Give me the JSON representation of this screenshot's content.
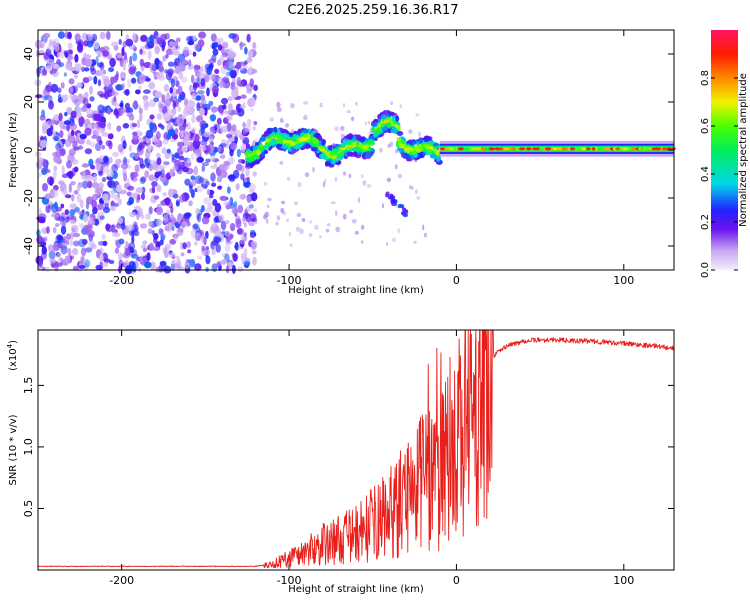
{
  "title": "C2E6.2025.259.16.36.R17",
  "chart_data": [
    {
      "type": "heatmap",
      "xlabel": "Height of straight line (km)",
      "ylabel": "Frequency (Hz)",
      "xlim": [
        -250,
        130
      ],
      "ylim": [
        -50,
        50
      ],
      "xticks": [
        -200,
        -100,
        0,
        100
      ],
      "yticks": [
        -40,
        -20,
        0,
        20,
        40
      ],
      "colorbar": {
        "label": "Normalized spectral amplitude",
        "ticks": [
          0.0,
          0.2,
          0.4,
          0.6,
          0.8
        ],
        "range": [
          0,
          1
        ]
      },
      "regions": [
        {
          "name": "noise",
          "x": [
            -250,
            -120
          ],
          "y": [
            -50,
            48
          ],
          "amplitude": [
            0.05,
            0.3
          ]
        },
        {
          "name": "transition",
          "x": [
            -125,
            -10
          ],
          "y_center": 2,
          "y_spread": 4,
          "amplitude": [
            0.3,
            0.7
          ]
        },
        {
          "name": "tail",
          "x": [
            -42,
            -28
          ],
          "y": [
            -18,
            -28
          ],
          "amplitude": [
            0.15,
            0.3
          ]
        },
        {
          "name": "carrier",
          "x": [
            -10,
            130
          ],
          "y_center": 0.5,
          "y_spread": 1.5,
          "amplitude": [
            0.5,
            1.0
          ]
        }
      ]
    },
    {
      "type": "line",
      "xlabel": "Height of straight line (km)",
      "ylabel": "SNR (10 * v/v)",
      "scale_label": "(x10",
      "scale_exp": "4",
      "scale_close": ")",
      "xlim": [
        -250,
        130
      ],
      "ylim": [
        0,
        1.95
      ],
      "yunit_multiplier": 10000,
      "xticks": [
        -200,
        -100,
        0,
        100
      ],
      "yticks": [
        0.5,
        1.0,
        1.5
      ],
      "ytick_labels": [
        "0.5",
        "1.0",
        "1.5"
      ],
      "color": "#e8201c",
      "series": [
        {
          "name": "SNR",
          "x": [
            -250,
            -200,
            -150,
            -120,
            -110,
            -100,
            -90,
            -80,
            -70,
            -60,
            -50,
            -40,
            -30,
            -20,
            -15,
            -10,
            -5,
            0,
            5,
            10,
            15,
            20,
            25,
            30,
            40,
            50,
            60,
            70,
            80,
            90,
            100,
            110,
            120,
            130
          ],
          "y": [
            0.03,
            0.03,
            0.03,
            0.03,
            0.05,
            0.12,
            0.18,
            0.25,
            0.3,
            0.35,
            0.45,
            0.55,
            0.7,
            0.85,
            0.95,
            1.05,
            1.15,
            1.25,
            1.4,
            1.55,
            1.65,
            1.72,
            1.77,
            1.82,
            1.86,
            1.87,
            1.87,
            1.86,
            1.86,
            1.85,
            1.84,
            1.83,
            1.82,
            1.8
          ]
        }
      ]
    }
  ]
}
